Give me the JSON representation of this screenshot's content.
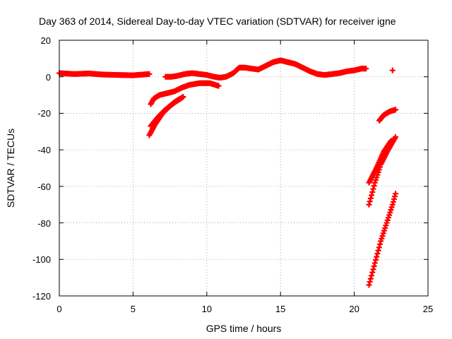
{
  "chart_data": {
    "type": "scatter",
    "title": "Day 363 of 2014, Sidereal Day-to-day VTEC variation (SDTVAR) for receiver igne",
    "xlabel": "GPS time / hours",
    "ylabel": "SDTVAR / TECUs",
    "xlim": [
      0,
      25
    ],
    "ylim": [
      -120,
      20
    ],
    "x_ticks": [
      "0",
      "5",
      "10",
      "15",
      "20",
      "25"
    ],
    "y_ticks": [
      "20",
      "0",
      "-20",
      "-40",
      "-60",
      "-80",
      "-100",
      "-120"
    ],
    "grid": true,
    "legend": "none",
    "marker": "plus",
    "series_color": "#ff0000",
    "series": [
      {
        "x": [
          0,
          1,
          2,
          3,
          4,
          5,
          6.1
        ],
        "y": [
          2,
          1.5,
          1.8,
          1.2,
          1,
          0.8,
          1.5
        ]
      },
      {
        "x": [
          7.2,
          7.6,
          8,
          8.5,
          9,
          9.5,
          10,
          10.5,
          10.9,
          11.3,
          11.8,
          12.2,
          12.6,
          13,
          13.5,
          14,
          14.5,
          15,
          15.5,
          16,
          16.5,
          17,
          17.5,
          18,
          18.5,
          19,
          19.5,
          20,
          20.5,
          20.8
        ],
        "y": [
          0,
          0,
          0.5,
          1.5,
          2,
          1.5,
          1,
          0,
          -0.5,
          0,
          2,
          5,
          5,
          4.5,
          4,
          6,
          8,
          9,
          8,
          7,
          5,
          3,
          1.5,
          1,
          1.5,
          2,
          3,
          3.5,
          4.5,
          4.5
        ]
      },
      {
        "x": [
          22.6
        ],
        "y": [
          3.5
        ]
      },
      {
        "x": [
          6.2,
          6.4,
          6.8,
          7.3,
          7.8,
          8.3,
          8.8,
          9.5,
          10.2,
          10.8
        ],
        "y": [
          -15,
          -12,
          -10,
          -9,
          -8,
          -6,
          -4.5,
          -3.5,
          -3.5,
          -5
        ]
      },
      {
        "x": [
          6.1,
          6.5,
          7,
          7.5,
          8,
          8.4
        ],
        "y": [
          -32,
          -26,
          -20,
          -16,
          -13,
          -11
        ]
      },
      {
        "x": [
          6.2,
          6.7,
          7.2,
          7.8,
          8.2
        ],
        "y": [
          -27,
          -22,
          -18,
          -14,
          -12
        ]
      },
      {
        "x": [
          21.0,
          21.4,
          21.8,
          22.3,
          22.8
        ],
        "y": [
          -70,
          -58,
          -48,
          -40,
          -33
        ]
      },
      {
        "x": [
          21.0,
          21.5,
          22.0,
          22.5
        ],
        "y": [
          -58,
          -50,
          -41,
          -35
        ]
      },
      {
        "x": [
          21.7,
          22.0,
          22.4,
          22.8
        ],
        "y": [
          -24,
          -21,
          -19,
          -18
        ]
      },
      {
        "x": [
          21.0,
          21.4,
          21.8,
          22.2,
          22.6,
          22.8
        ],
        "y": [
          -114,
          -102,
          -90,
          -80,
          -70,
          -64
        ]
      }
    ]
  }
}
